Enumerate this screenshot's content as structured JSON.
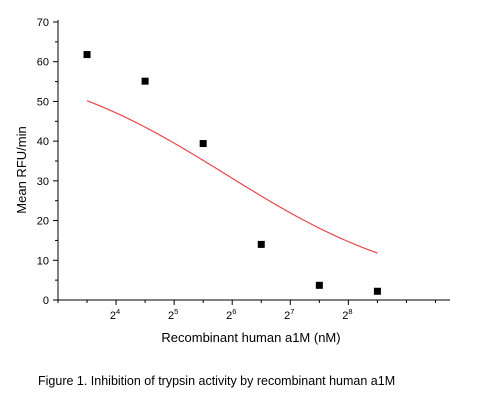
{
  "chart_data": {
    "type": "scatter",
    "xlabel": "Recombinant human a1M (nM)",
    "ylabel": "Mean RFU/min",
    "caption": "Figure 1. Inhibition of trypsin activity by recombinant human a1M",
    "x_scale": "log2",
    "xlim_log2": [
      3.0,
      9.75
    ],
    "ylim": [
      0,
      70
    ],
    "x_ticks": [
      {
        "base": "2",
        "exp": "4",
        "log2": 4
      },
      {
        "base": "2",
        "exp": "5",
        "log2": 5
      },
      {
        "base": "2",
        "exp": "6",
        "log2": 6
      },
      {
        "base": "2",
        "exp": "7",
        "log2": 7
      },
      {
        "base": "2",
        "exp": "8",
        "log2": 8
      }
    ],
    "y_ticks": [
      0,
      10,
      20,
      30,
      40,
      50,
      60,
      70
    ],
    "series": [
      {
        "x_log2": [
          3.5,
          4.5,
          5.5,
          6.5,
          7.5,
          8.5
        ],
        "y": [
          61.8,
          55.1,
          39.4,
          14.0,
          3.7,
          2.2
        ],
        "marker": "square",
        "fit": {
          "model": "4PL",
          "top": 61.9,
          "bottom": 1.2,
          "ic50_log2": 5.9,
          "hill": 0.86,
          "color": "#e8474a"
        }
      }
    ]
  }
}
